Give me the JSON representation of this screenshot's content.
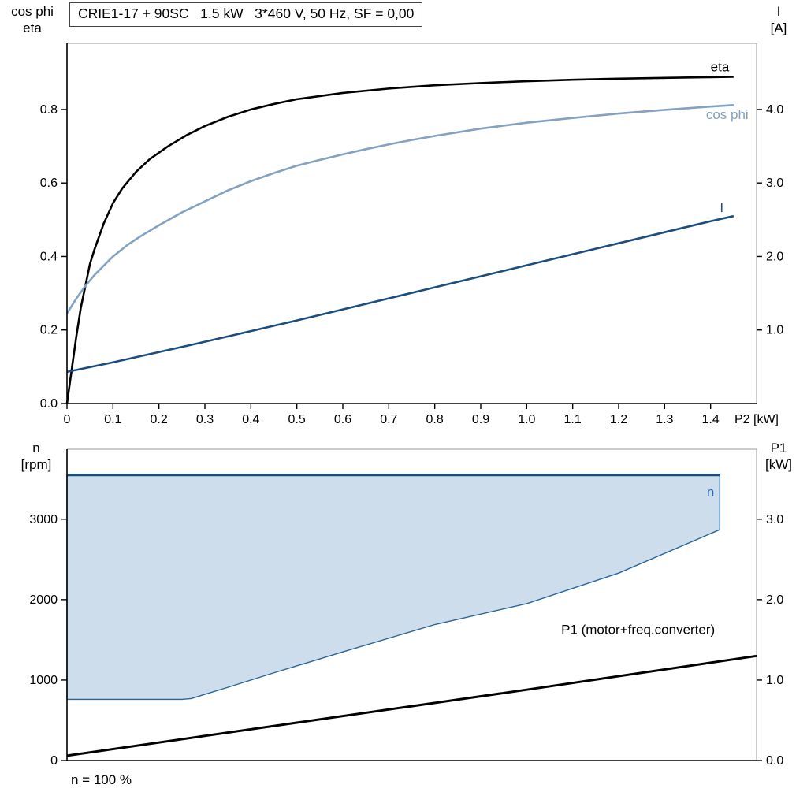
{
  "title_box": "CRIE1-17 + 90SC   1.5 kW   3*460 V, 50 Hz, SF = 0,00",
  "colors": {
    "eta": "#000000",
    "cos_phi": "#83a1c0",
    "current": "#1b4e7f",
    "envelope_fill": "#cdddeb",
    "envelope_stroke": "#2a6699",
    "p1": "#000000",
    "n_label": "#2e6fb2",
    "frame": "#9a9a9a",
    "axis": "#000000"
  },
  "chart_data": [
    {
      "id": "top",
      "type": "line",
      "left_axis_title": [
        "cos phi",
        "eta"
      ],
      "right_axis_title": [
        "I",
        "[A]"
      ],
      "x_axis": {
        "min": 0,
        "max": 1.5,
        "ticks": [
          {
            "v": 0,
            "label": "0"
          },
          {
            "v": 0.1,
            "label": "0.1"
          },
          {
            "v": 0.2,
            "label": "0.2"
          },
          {
            "v": 0.3,
            "label": "0.3"
          },
          {
            "v": 0.4,
            "label": "0.4"
          },
          {
            "v": 0.5,
            "label": "0.5"
          },
          {
            "v": 0.6,
            "label": "0.6"
          },
          {
            "v": 0.7,
            "label": "0.7"
          },
          {
            "v": 0.8,
            "label": "0.8"
          },
          {
            "v": 0.9,
            "label": "0.9"
          },
          {
            "v": 1.0,
            "label": "1.0"
          },
          {
            "v": 1.1,
            "label": "1.1"
          },
          {
            "v": 1.2,
            "label": "1.2"
          },
          {
            "v": 1.3,
            "label": "1.3"
          },
          {
            "v": 1.4,
            "label": "1.4"
          },
          {
            "v": 1.5,
            "label": "P2 [kW]",
            "mark": false
          }
        ]
      },
      "left_axis": {
        "min": 0,
        "max": 0.98,
        "ticks": [
          {
            "v": 0.0,
            "label": "0.0"
          },
          {
            "v": 0.2,
            "label": "0.2"
          },
          {
            "v": 0.4,
            "label": "0.4"
          },
          {
            "v": 0.6,
            "label": "0.6"
          },
          {
            "v": 0.8,
            "label": "0.8"
          }
        ]
      },
      "right_axis": {
        "min": 0,
        "max": 4.9,
        "ticks": [
          {
            "v": 1.0,
            "label": "1.0"
          },
          {
            "v": 2.0,
            "label": "2.0"
          },
          {
            "v": 3.0,
            "label": "3.0"
          },
          {
            "v": 4.0,
            "label": "4.0"
          }
        ]
      },
      "series": [
        {
          "name": "eta",
          "axis": "left",
          "color_key": "eta",
          "width": 2.6,
          "points": [
            [
              0,
              0
            ],
            [
              0.01,
              0.09
            ],
            [
              0.02,
              0.18
            ],
            [
              0.03,
              0.26
            ],
            [
              0.04,
              0.32
            ],
            [
              0.05,
              0.38
            ],
            [
              0.06,
              0.42
            ],
            [
              0.08,
              0.49
            ],
            [
              0.1,
              0.545
            ],
            [
              0.12,
              0.585
            ],
            [
              0.15,
              0.63
            ],
            [
              0.18,
              0.665
            ],
            [
              0.22,
              0.7
            ],
            [
              0.26,
              0.73
            ],
            [
              0.3,
              0.755
            ],
            [
              0.35,
              0.78
            ],
            [
              0.4,
              0.8
            ],
            [
              0.45,
              0.815
            ],
            [
              0.5,
              0.828
            ],
            [
              0.6,
              0.845
            ],
            [
              0.7,
              0.857
            ],
            [
              0.8,
              0.866
            ],
            [
              0.9,
              0.872
            ],
            [
              1.0,
              0.877
            ],
            [
              1.1,
              0.881
            ],
            [
              1.2,
              0.884
            ],
            [
              1.3,
              0.886
            ],
            [
              1.4,
              0.888
            ],
            [
              1.45,
              0.889
            ]
          ]
        },
        {
          "name": "cos phi",
          "axis": "left",
          "color_key": "cos_phi",
          "width": 2.6,
          "points": [
            [
              0,
              0.245
            ],
            [
              0.02,
              0.285
            ],
            [
              0.04,
              0.32
            ],
            [
              0.06,
              0.35
            ],
            [
              0.08,
              0.375
            ],
            [
              0.1,
              0.4
            ],
            [
              0.13,
              0.43
            ],
            [
              0.16,
              0.455
            ],
            [
              0.2,
              0.485
            ],
            [
              0.25,
              0.52
            ],
            [
              0.3,
              0.55
            ],
            [
              0.35,
              0.58
            ],
            [
              0.4,
              0.605
            ],
            [
              0.45,
              0.627
            ],
            [
              0.5,
              0.647
            ],
            [
              0.55,
              0.663
            ],
            [
              0.6,
              0.678
            ],
            [
              0.65,
              0.692
            ],
            [
              0.7,
              0.705
            ],
            [
              0.75,
              0.717
            ],
            [
              0.8,
              0.728
            ],
            [
              0.9,
              0.748
            ],
            [
              1.0,
              0.764
            ],
            [
              1.1,
              0.777
            ],
            [
              1.2,
              0.789
            ],
            [
              1.3,
              0.799
            ],
            [
              1.4,
              0.808
            ],
            [
              1.45,
              0.812
            ]
          ]
        },
        {
          "name": "I",
          "axis": "right",
          "color_key": "current",
          "width": 2.6,
          "points": [
            [
              0,
              0.43
            ],
            [
              0.1,
              0.56
            ],
            [
              0.2,
              0.7
            ],
            [
              0.3,
              0.84
            ],
            [
              0.4,
              0.985
            ],
            [
              0.5,
              1.13
            ],
            [
              0.6,
              1.28
            ],
            [
              0.7,
              1.43
            ],
            [
              0.8,
              1.58
            ],
            [
              0.9,
              1.73
            ],
            [
              1.0,
              1.88
            ],
            [
              1.1,
              2.03
            ],
            [
              1.2,
              2.18
            ],
            [
              1.3,
              2.33
            ],
            [
              1.4,
              2.48
            ],
            [
              1.45,
              2.55
            ]
          ]
        }
      ],
      "annotations": [
        {
          "text": "eta",
          "x": 1.4,
          "y": 0.915,
          "axis": "left",
          "color_key": "eta",
          "anchor": "start"
        },
        {
          "text": "cos phi",
          "x": 1.39,
          "y": 0.785,
          "axis": "left",
          "color_key": "cos_phi",
          "anchor": "start"
        },
        {
          "text": "I",
          "x": 1.42,
          "y": 2.66,
          "axis": "right",
          "color_key": "current",
          "anchor": "start"
        }
      ]
    },
    {
      "id": "bottom",
      "type": "line",
      "left_axis_title": [
        "n",
        "[rpm]"
      ],
      "right_axis_title": [
        "P1",
        "[kW]"
      ],
      "footnote": "n = 100 %",
      "x_axis": {
        "min": 0,
        "max": 1.5,
        "ticks": []
      },
      "left_axis": {
        "min": 0,
        "max": 3870,
        "ticks": [
          {
            "v": 0,
            "label": "0"
          },
          {
            "v": 1000,
            "label": "1000"
          },
          {
            "v": 2000,
            "label": "2000"
          },
          {
            "v": 3000,
            "label": "3000"
          }
        ]
      },
      "right_axis": {
        "min": 0,
        "max": 3.87,
        "ticks": [
          {
            "v": 0.0,
            "label": "0.0"
          },
          {
            "v": 1.0,
            "label": "1.0"
          },
          {
            "v": 2.0,
            "label": "2.0"
          },
          {
            "v": 3.0,
            "label": "3.0"
          }
        ]
      },
      "areas": [
        {
          "name": "operating-envelope",
          "axis": "left",
          "fill_key": "envelope_fill",
          "stroke_key": "envelope_stroke",
          "stroke_width": 1.4,
          "points": [
            [
              0,
              3550
            ],
            [
              1.42,
              3550
            ],
            [
              1.42,
              2870
            ],
            [
              1.2,
              2330
            ],
            [
              1.0,
              1950
            ],
            [
              0.8,
              1690
            ],
            [
              0.6,
              1350
            ],
            [
              0.45,
              1090
            ],
            [
              0.35,
              910
            ],
            [
              0.27,
              770
            ],
            [
              0.25,
              760
            ],
            [
              0,
              760
            ]
          ]
        }
      ],
      "series": [
        {
          "name": "n-max-limit",
          "axis": "left",
          "color_key": "current",
          "width": 3.2,
          "points": [
            [
              0,
              3550
            ],
            [
              1.42,
              3550
            ]
          ]
        },
        {
          "name": "P1 (motor+freq.converter)",
          "axis": "right",
          "color_key": "p1",
          "width": 3,
          "points": [
            [
              0,
              0.06
            ],
            [
              0.5,
              0.47
            ],
            [
              1.0,
              0.88
            ],
            [
              1.5,
              1.3
            ]
          ]
        }
      ],
      "annotations": [
        {
          "text": "n",
          "x": 1.4,
          "y": 3330,
          "axis": "left",
          "color_key": "n_label",
          "anchor": "middle"
        },
        {
          "text": "P1 (motor+freq.converter)",
          "x": 1.075,
          "y": 1.62,
          "axis": "right",
          "color_key": "p1",
          "anchor": "start"
        }
      ]
    }
  ]
}
